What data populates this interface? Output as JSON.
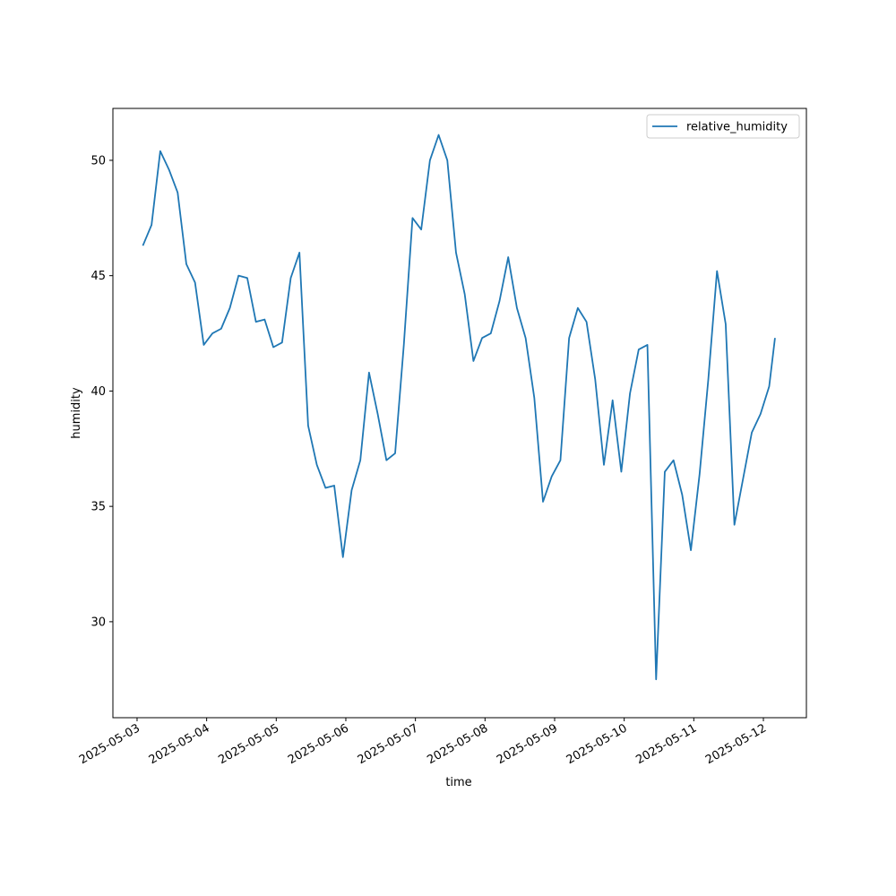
{
  "chart_data": {
    "type": "line",
    "xlabel": "time",
    "ylabel": "humidity",
    "x": [
      "2025-05-03T02:00",
      "2025-05-03T05:00",
      "2025-05-03T08:00",
      "2025-05-03T11:00",
      "2025-05-03T14:00",
      "2025-05-03T17:00",
      "2025-05-03T20:00",
      "2025-05-03T23:00",
      "2025-05-04T02:00",
      "2025-05-04T05:00",
      "2025-05-04T08:00",
      "2025-05-04T11:00",
      "2025-05-04T14:00",
      "2025-05-04T17:00",
      "2025-05-04T20:00",
      "2025-05-04T23:00",
      "2025-05-05T02:00",
      "2025-05-05T05:00",
      "2025-05-05T08:00",
      "2025-05-05T11:00",
      "2025-05-05T14:00",
      "2025-05-05T17:00",
      "2025-05-05T20:00",
      "2025-05-05T23:00",
      "2025-05-06T02:00",
      "2025-05-06T05:00",
      "2025-05-06T08:00",
      "2025-05-06T11:00",
      "2025-05-06T14:00",
      "2025-05-06T17:00",
      "2025-05-06T20:00",
      "2025-05-06T23:00",
      "2025-05-07T02:00",
      "2025-05-07T05:00",
      "2025-05-07T08:00",
      "2025-05-07T11:00",
      "2025-05-07T14:00",
      "2025-05-07T17:00",
      "2025-05-07T20:00",
      "2025-05-07T23:00",
      "2025-05-08T02:00",
      "2025-05-08T05:00",
      "2025-05-08T08:00",
      "2025-05-08T11:00",
      "2025-05-08T14:00",
      "2025-05-08T17:00",
      "2025-05-08T20:00",
      "2025-05-08T23:00",
      "2025-05-09T02:00",
      "2025-05-09T05:00",
      "2025-05-09T08:00",
      "2025-05-09T11:00",
      "2025-05-09T14:00",
      "2025-05-09T17:00",
      "2025-05-09T20:00",
      "2025-05-09T23:00",
      "2025-05-10T02:00",
      "2025-05-10T05:00",
      "2025-05-10T08:00",
      "2025-05-10T11:00",
      "2025-05-10T14:00",
      "2025-05-10T17:00",
      "2025-05-10T20:00",
      "2025-05-10T23:00",
      "2025-05-11T02:00",
      "2025-05-11T05:00",
      "2025-05-11T08:00",
      "2025-05-11T11:00",
      "2025-05-11T14:00",
      "2025-05-11T17:00",
      "2025-05-11T20:00",
      "2025-05-11T23:00",
      "2025-05-12T02:00",
      "2025-05-12T04:00"
    ],
    "series": [
      {
        "name": "relative_humidity",
        "color": "#1f77b4",
        "values": [
          46.3,
          47.2,
          50.4,
          49.6,
          48.6,
          45.5,
          44.7,
          42.0,
          42.5,
          42.7,
          43.6,
          45.0,
          44.9,
          43.0,
          43.1,
          41.9,
          42.1,
          44.9,
          46.0,
          38.5,
          36.8,
          35.8,
          35.9,
          32.8,
          35.7,
          37.0,
          40.8,
          39.0,
          37.0,
          37.3,
          42.0,
          47.5,
          47.0,
          50.0,
          51.1,
          50.0,
          46.0,
          44.2,
          41.3,
          42.3,
          42.5,
          43.9,
          45.8,
          43.6,
          42.3,
          39.7,
          35.2,
          36.3,
          37.0,
          42.3,
          43.6,
          43.0,
          40.5,
          36.8,
          39.6,
          36.5,
          39.9,
          41.8,
          42.0,
          27.5,
          36.5,
          37.0,
          35.5,
          33.1,
          36.4,
          40.5,
          45.2,
          42.9,
          34.2,
          36.2,
          38.2,
          39.0,
          40.2,
          42.3
        ]
      }
    ],
    "xlim": [
      "2025-05-02T15:40",
      "2025-05-12T14:50"
    ],
    "xticks": [
      "2025-05-03",
      "2025-05-04",
      "2025-05-05",
      "2025-05-06",
      "2025-05-07",
      "2025-05-08",
      "2025-05-09",
      "2025-05-10",
      "2025-05-11",
      "2025-05-12"
    ],
    "ylim": [
      25.84,
      52.25
    ],
    "yticks": [
      30,
      35,
      40,
      45,
      50
    ],
    "legend": "upper right"
  }
}
